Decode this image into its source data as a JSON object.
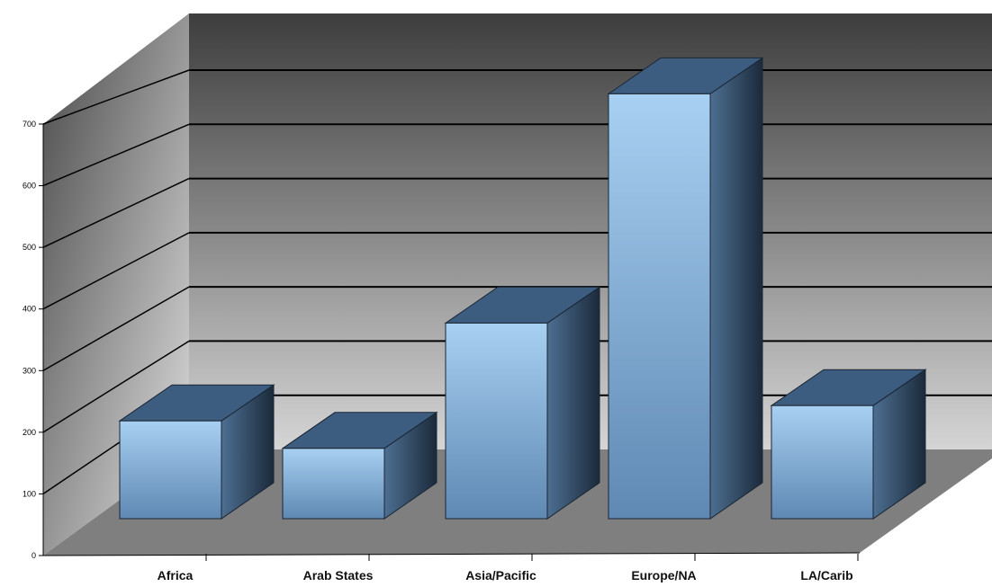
{
  "chart_data": {
    "type": "bar",
    "categories": [
      "Africa",
      "Arab States",
      "Asia/Pacific",
      "Europe/NA",
      "LA/Carib"
    ],
    "values": [
      160,
      115,
      320,
      695,
      185
    ],
    "ylim": [
      0,
      700
    ],
    "yticks": [
      0,
      100,
      200,
      300,
      400,
      500,
      600,
      700
    ],
    "grid": true,
    "title": "",
    "xlabel": "",
    "ylabel": "",
    "style": "3d"
  },
  "colors": {
    "bar_front_light": "#a8d0f2",
    "bar_front_dark": "#5f88b3",
    "bar_side_light": "#4d6f92",
    "bar_side_dark": "#1b2a3a",
    "bar_top": "#3c5c80",
    "wall_top": "#3d3d3d",
    "wall_bottom": "#d5d5d5",
    "floor": "#7f7f7f",
    "gridline": "#000000"
  }
}
